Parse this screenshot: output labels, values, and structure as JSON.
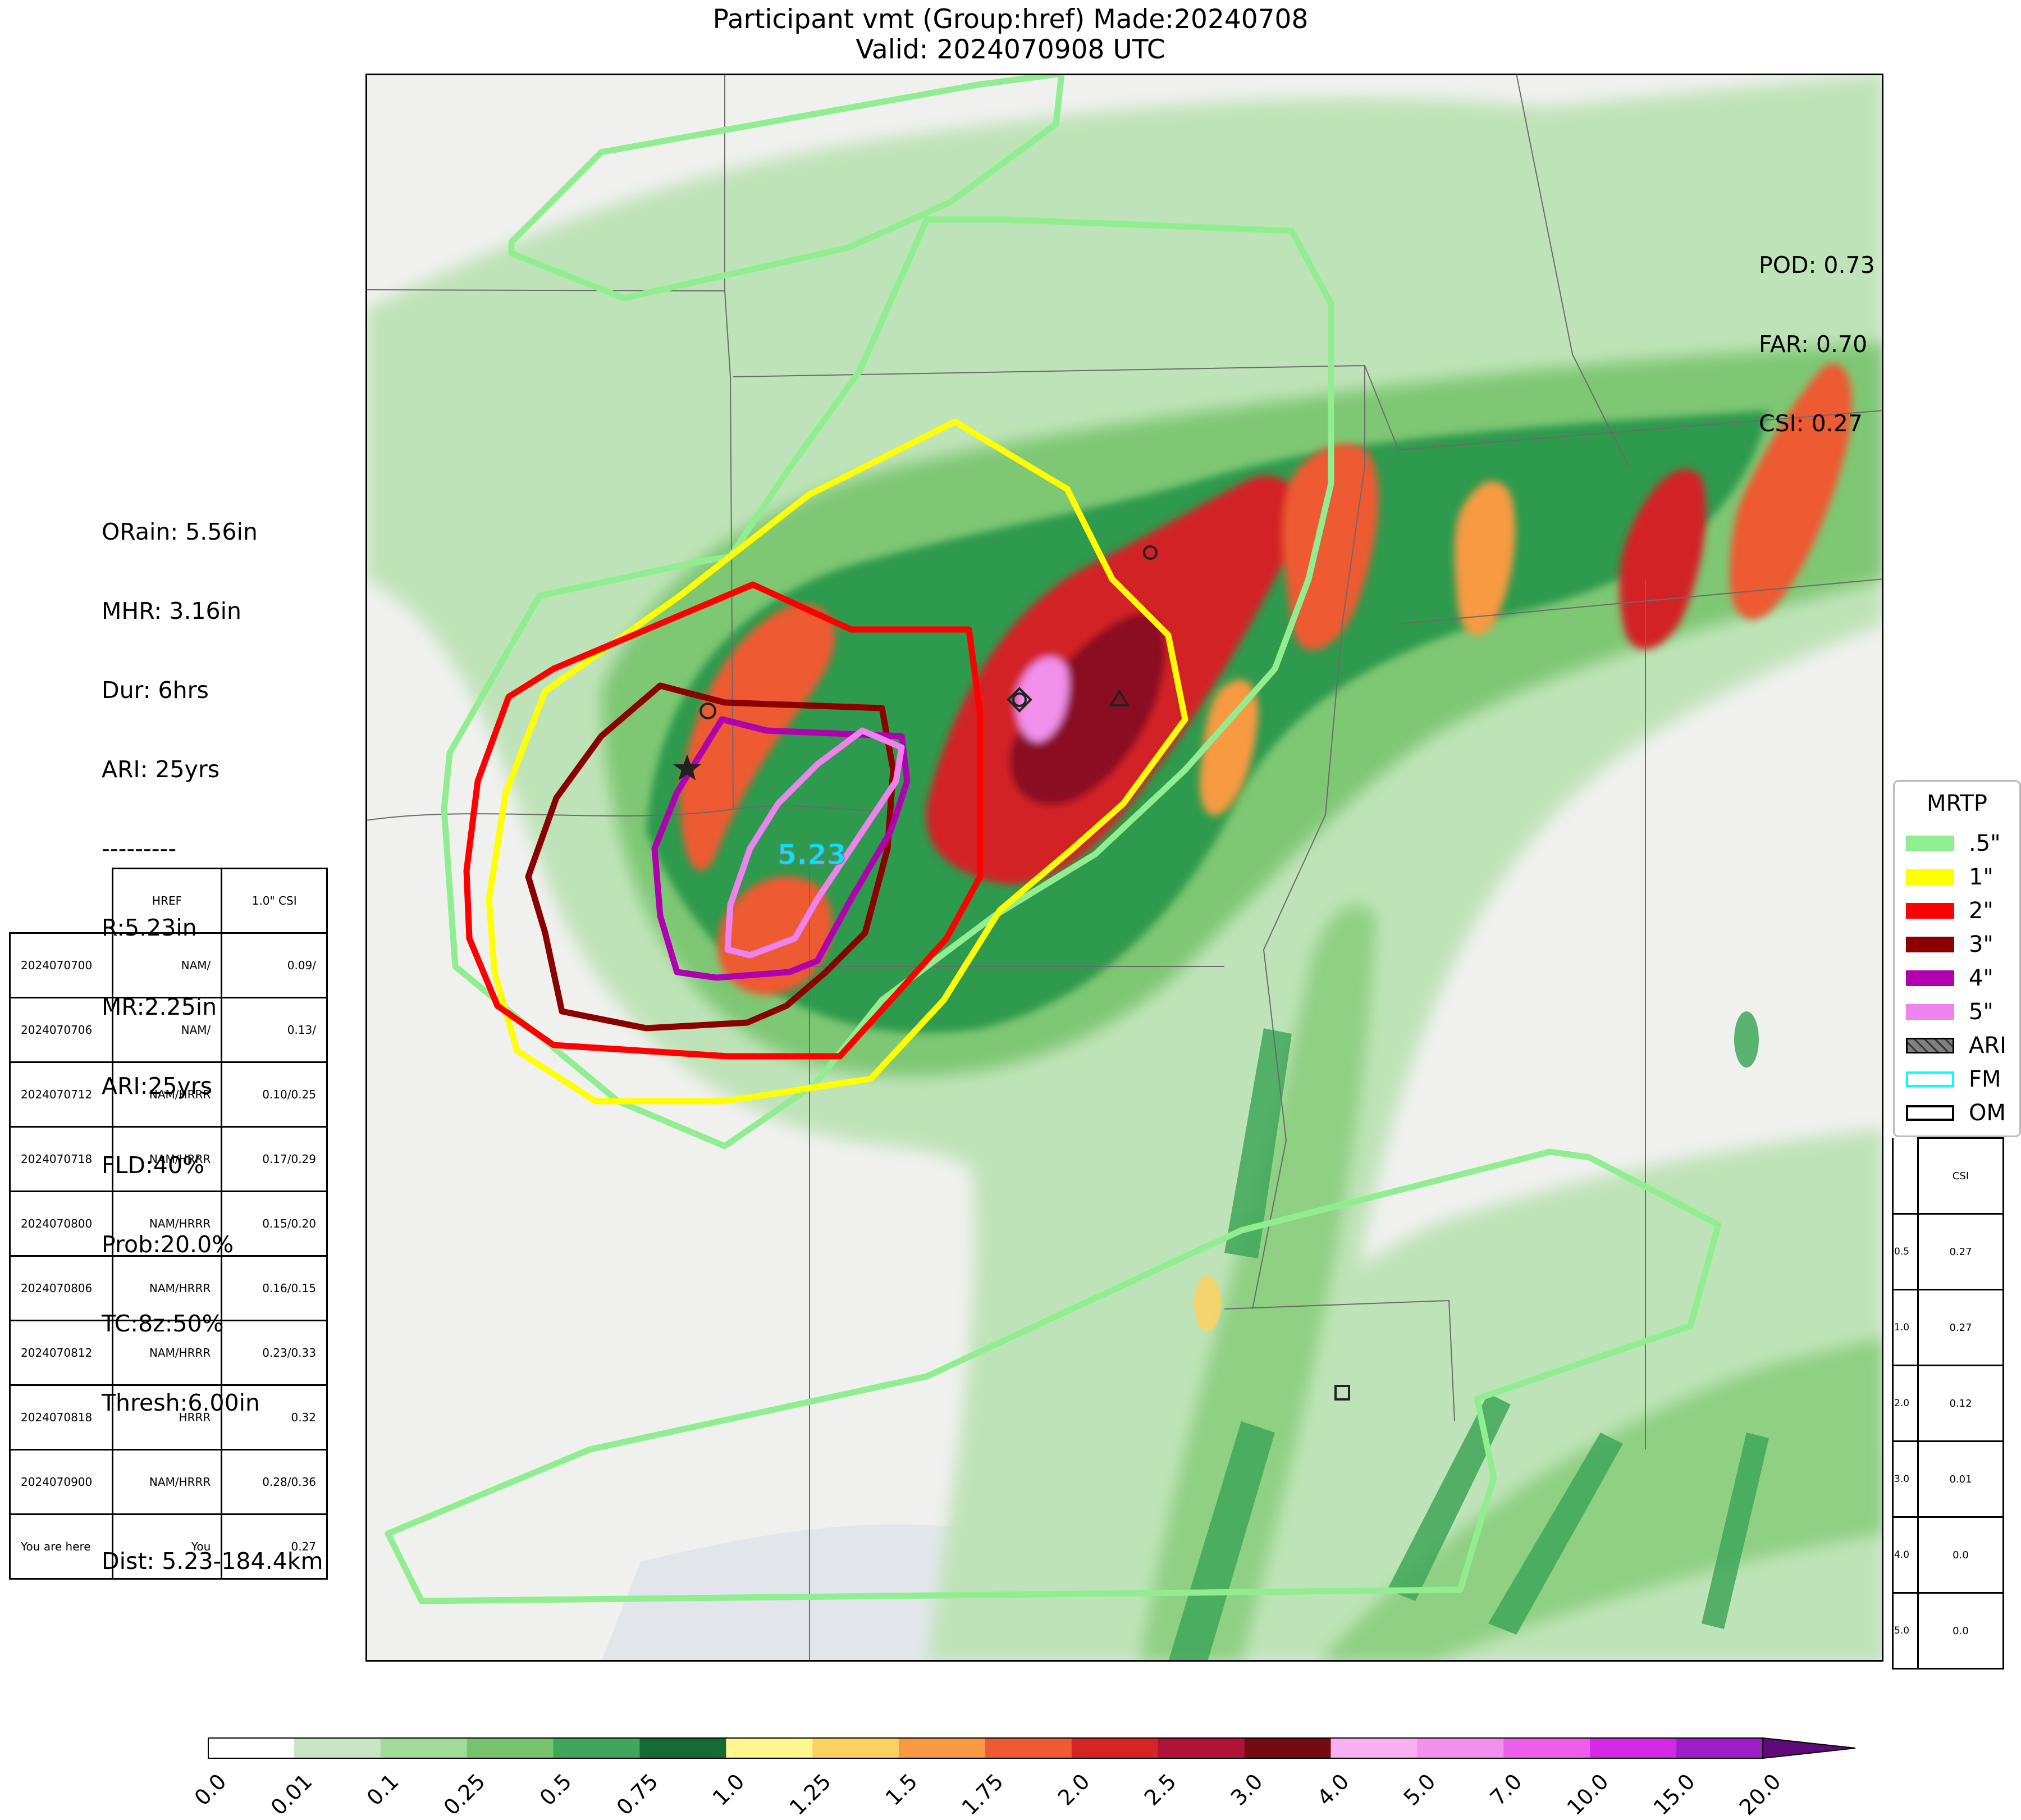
{
  "title": {
    "line1": "Participant vmt (Group:href) Made:20240708",
    "line2": "Valid: 2024070908 UTC"
  },
  "verification": {
    "pod": "POD: 0.73",
    "far": "FAR: 0.70",
    "csi": "CSI: 0.27"
  },
  "stats": {
    "orain": "ORain: 5.56in",
    "mhr": "MHR: 3.16in",
    "dur": "Dur: 6hrs",
    "ari_obs": "ARI: 25yrs",
    "sep": "---------",
    "r": "R:5.23in",
    "mr": "MR:2.25in",
    "ari": "ARI:25yrs",
    "fld": "FLD:40%",
    "prob": "Prob:20.0%",
    "tc": "TC:8z:50%",
    "thresh": "Thresh:6.00in",
    "dist": "Dist: 5.23-184.4km"
  },
  "max_label": "5.23",
  "history_table": {
    "headers": [
      "",
      "HREF",
      "1.0\" CSI"
    ],
    "rows": [
      [
        "2024070700",
        "NAM/",
        "0.09/"
      ],
      [
        "2024070706",
        "NAM/",
        "0.13/"
      ],
      [
        "2024070712",
        "NAM/HRRR",
        "0.10/0.25"
      ],
      [
        "2024070718",
        "NAM/HRRR",
        "0.17/0.29"
      ],
      [
        "2024070800",
        "NAM/HRRR",
        "0.15/0.20"
      ],
      [
        "2024070806",
        "NAM/HRRR",
        "0.16/0.15"
      ],
      [
        "2024070812",
        "NAM/HRRR",
        "0.23/0.33"
      ],
      [
        "2024070818",
        "HRRR",
        "0.32"
      ],
      [
        "2024070900",
        "NAM/HRRR",
        "0.28/0.36"
      ],
      [
        "You are here",
        "You",
        "0.27"
      ]
    ]
  },
  "threshold_table": {
    "header": "CSI",
    "rows": [
      [
        "0.5",
        "0.27"
      ],
      [
        "1.0",
        "0.27"
      ],
      [
        "2.0",
        "0.12"
      ],
      [
        "3.0",
        "0.01"
      ],
      [
        "4.0",
        "0.0"
      ],
      [
        "5.0",
        "0.0"
      ]
    ]
  },
  "legend": {
    "title": "MRTP",
    "items": [
      {
        "label": ".5\"",
        "color": "#90ee90",
        "kind": "fill"
      },
      {
        "label": "1\"",
        "color": "#ffff00",
        "kind": "fill"
      },
      {
        "label": "2\"",
        "color": "#ff0000",
        "kind": "fill"
      },
      {
        "label": "3\"",
        "color": "#8b0000",
        "kind": "fill"
      },
      {
        "label": "4\"",
        "color": "#b000b0",
        "kind": "fill"
      },
      {
        "label": "5\"",
        "color": "#ee82ee",
        "kind": "fill"
      },
      {
        "label": "ARI",
        "color": "#808080",
        "kind": "hatch"
      },
      {
        "label": "FM",
        "color": "#00ffff",
        "kind": "outline"
      },
      {
        "label": "OM",
        "color": "#000000",
        "kind": "outline"
      }
    ]
  },
  "colorbar": {
    "ticks": [
      "0.0",
      "0.01",
      "0.1",
      "0.25",
      "0.5",
      "0.75",
      "1.0",
      "1.25",
      "1.5",
      "1.75",
      "2.0",
      "2.5",
      "3.0",
      "4.0",
      "5.0",
      "7.0",
      "10.0",
      "15.0",
      "20.0"
    ],
    "colors": [
      "#ffffff",
      "#c8e6c4",
      "#a1dc98",
      "#78c46e",
      "#3fa75a",
      "#146c34",
      "#fff68e",
      "#fdd162",
      "#f79a43",
      "#ee5a32",
      "#d32426",
      "#b01238",
      "#730b12",
      "#f8b0f0",
      "#f290ec",
      "#ee5eea",
      "#d42ae6",
      "#9e1ec8"
    ],
    "extend_color": "#5e0a7a"
  }
}
